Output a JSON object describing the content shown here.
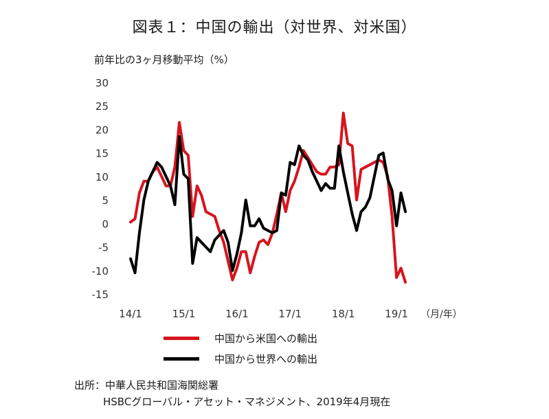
{
  "title": "図表１：中国の輸出（対世界、対米国）",
  "source": {
    "line1": "出所：中華人民共和国海関総署",
    "line2": "HSBCグローバル・アセット・マネジメント、2019年4月現在"
  },
  "chart_data": {
    "type": "line",
    "title": "図表１：中国の輸出（対世界、対米国）",
    "ylabel": "前年比の3ヶ月移動平均（%）",
    "xlabel": "（月/年）",
    "ylim": [
      -15,
      30
    ],
    "yticks": [
      30,
      25,
      20,
      15,
      10,
      5,
      0,
      -5,
      -10,
      -15
    ],
    "x_tick_labels": [
      "14/1",
      "15/1",
      "16/1",
      "17/1",
      "18/1",
      "19/1"
    ],
    "x_tick_index": [
      0,
      12,
      24,
      36,
      48,
      60
    ],
    "colors": {
      "us": "#d7141e",
      "world": "#000000"
    },
    "series": [
      {
        "key": "us",
        "name": "中国から米国への輸出",
        "values": [
          0.3,
          1,
          6.5,
          9,
          9,
          11,
          12,
          10,
          8,
          8,
          12,
          21.5,
          15.5,
          14.5,
          1.5,
          8,
          6,
          2.5,
          2,
          1.5,
          -1.5,
          -4,
          -8,
          -12,
          -9.5,
          -6,
          -6,
          -10.5,
          -7,
          -4,
          -3.5,
          -4.5,
          -2,
          2,
          6.5,
          2.5,
          7,
          9,
          12,
          15.5,
          14,
          12.5,
          11,
          10.5,
          10.5,
          12,
          12,
          12.5,
          23.5,
          17,
          16.5,
          5,
          11.5,
          12,
          12.5,
          13,
          13.5,
          13,
          10,
          1.5,
          -11.5,
          -9.5,
          -12.5
        ]
      },
      {
        "key": "world",
        "name": "中国から世界への輸出",
        "values": [
          -7.5,
          -10.5,
          -2,
          5,
          9,
          11,
          13,
          12,
          10,
          8,
          4,
          18.5,
          10.5,
          9.5,
          -8.5,
          -3,
          -4,
          -5,
          -6,
          -3.5,
          -2.5,
          -1.5,
          -4,
          -10,
          -6.5,
          -2,
          5,
          -0.5,
          -0.5,
          1,
          -1,
          -1.5,
          -2,
          -1.5,
          6.5,
          6,
          13,
          12.5,
          16.5,
          14.5,
          13.5,
          11,
          9,
          7,
          8.5,
          7.5,
          7.5,
          16.5,
          11,
          6.5,
          2,
          -1.5,
          2.5,
          3.5,
          5.5,
          10,
          14.5,
          15,
          9.5,
          7,
          -0.5,
          6.5,
          2.5
        ]
      }
    ]
  }
}
